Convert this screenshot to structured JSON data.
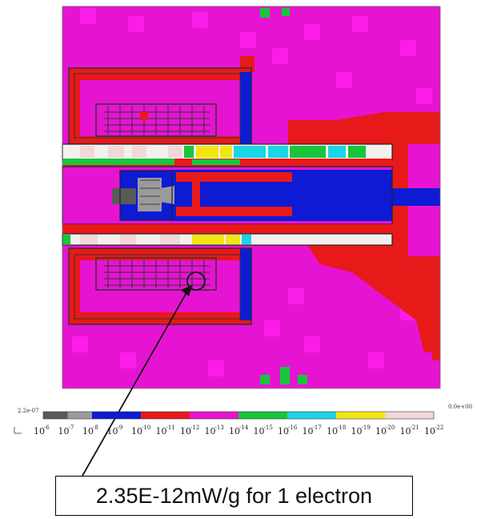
{
  "colorbar": {
    "max_label": "2.2e-07",
    "min_label": "0.0e+00",
    "colors": [
      "#5a5a5a",
      "#9a9a9a",
      "#0d1bd4",
      "#0d1bd4",
      "#e81919",
      "#e81919",
      "#e614d2",
      "#e614d2",
      "#17c63a",
      "#17c63a",
      "#19d6e6",
      "#19d6e6",
      "#f2e514",
      "#f2e514",
      "#f0d8d8",
      "#f0d8d8"
    ],
    "tick_labels": [
      {
        "base": "10",
        "exp": "-6"
      },
      {
        "base": "10",
        "exp": "-7"
      },
      {
        "base": "10",
        "exp": "-8"
      },
      {
        "base": "10",
        "exp": "-9"
      },
      {
        "base": "10",
        "exp": "-10"
      },
      {
        "base": "10",
        "exp": "-11"
      },
      {
        "base": "10",
        "exp": "-12"
      },
      {
        "base": "10",
        "exp": "-13"
      },
      {
        "base": "10",
        "exp": "-14"
      },
      {
        "base": "10",
        "exp": "-15"
      },
      {
        "base": "10",
        "exp": "-16"
      },
      {
        "base": "10",
        "exp": "-17"
      },
      {
        "base": "10",
        "exp": "-18"
      },
      {
        "base": "10",
        "exp": "-19"
      },
      {
        "base": "10",
        "exp": "-20"
      },
      {
        "base": "10",
        "exp": "-21"
      },
      {
        "base": "10",
        "exp": "-22"
      }
    ]
  },
  "map": {
    "background_color": "#e614d2",
    "bright_pink": "#ff14ee",
    "red": "#e81919",
    "blue": "#0d1bd4",
    "green": "#17c63a",
    "gray": "#9a9a9a"
  },
  "annotation": {
    "text": "2.35E-12mW/g for 1 electron"
  }
}
